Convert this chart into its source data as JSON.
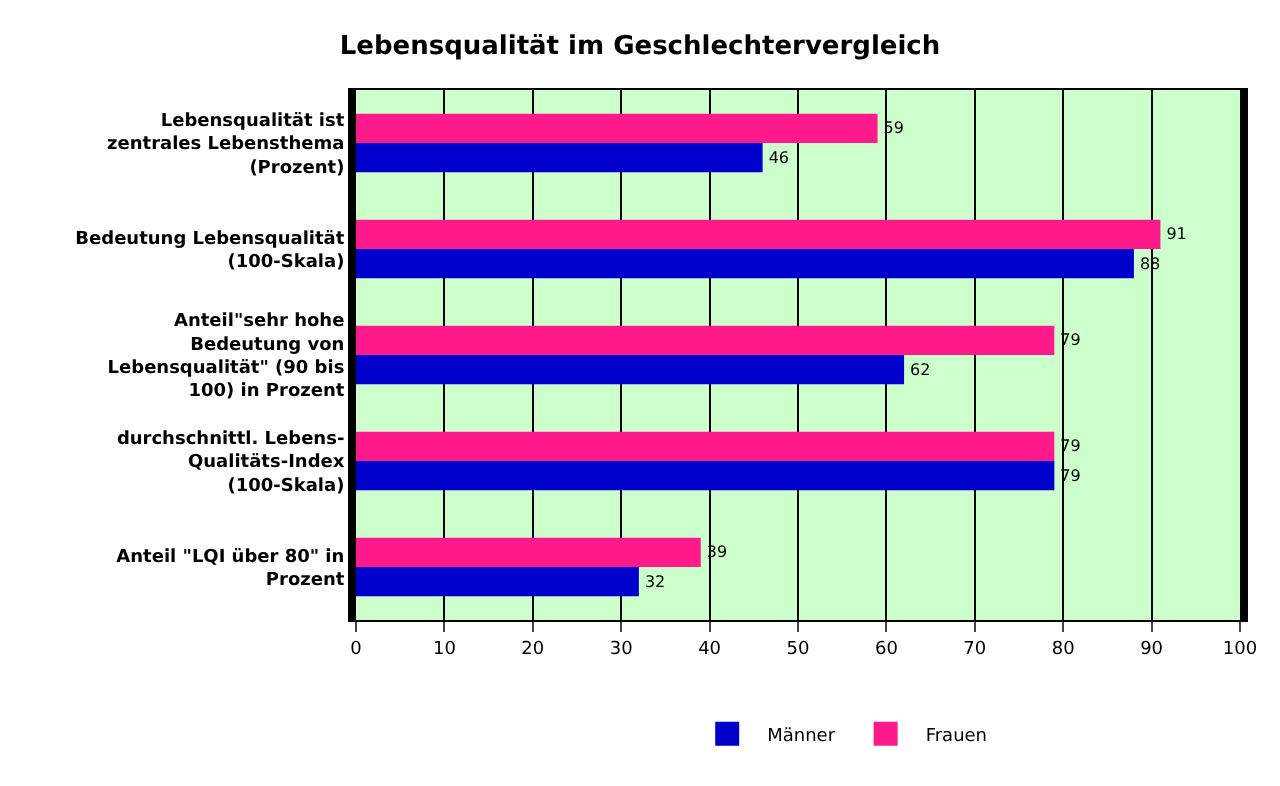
{
  "chart_data": {
    "type": "bar",
    "orientation": "horizontal",
    "title": "Lebensqualität im Geschlechtervergleich",
    "categories": [
      "Lebensqualität ist zentrales Lebensthema (Prozent)",
      "Bedeutung Lebensqualität (100-Skala)",
      "Anteil\"sehr hohe Bedeutung von Lebensqualität\" (90 bis 100) in Prozent",
      "durchschnittl. Lebens-Qualitäts-Index (100-Skala)",
      "Anteil \"LQI über 80\" in Prozent"
    ],
    "series": [
      {
        "name": "Frauen",
        "color": "#ff1a8c",
        "values": [
          59,
          91,
          79,
          79,
          39
        ]
      },
      {
        "name": "Männer",
        "color": "#0000cc",
        "values": [
          46,
          88,
          62,
          79,
          32
        ]
      }
    ],
    "xlim": [
      0,
      100
    ],
    "xticks": [
      0,
      10,
      20,
      30,
      40,
      50,
      60,
      70,
      80,
      90,
      100
    ],
    "grid": "x",
    "legend": "bottom",
    "data_labels": true
  }
}
